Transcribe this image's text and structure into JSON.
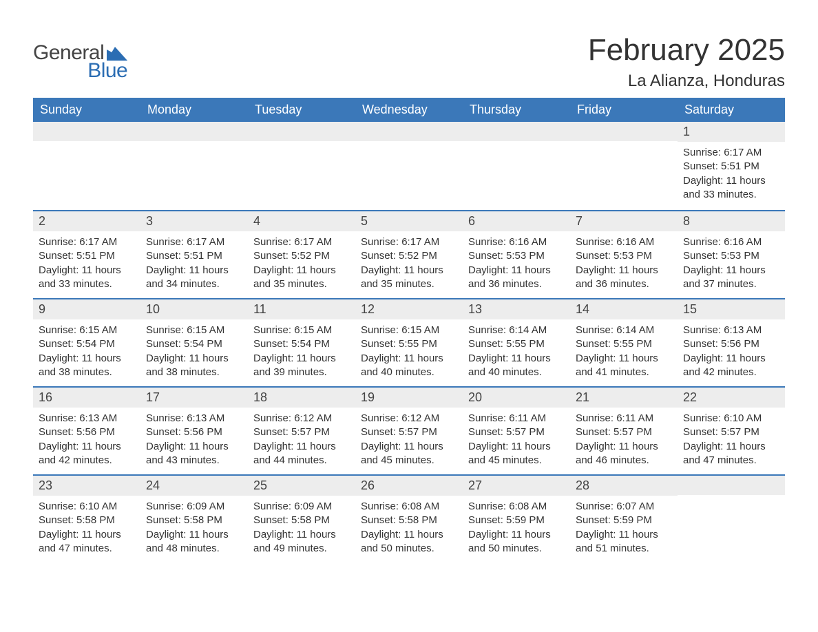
{
  "brand": {
    "part1": "General",
    "part2": "Blue",
    "icon_color": "#2b6db3",
    "text1_color": "#444444"
  },
  "title": "February 2025",
  "location": "La Alianza, Honduras",
  "colors": {
    "header_bg": "#3b78b9",
    "header_text": "#ffffff",
    "row_divider": "#3b78b9",
    "daynum_bg": "#ededed",
    "body_text": "#333333",
    "page_bg": "#ffffff"
  },
  "fonts": {
    "family": "Arial",
    "month_title_pt": 44,
    "location_pt": 24,
    "weekday_pt": 18,
    "daynum_pt": 18,
    "body_pt": 15
  },
  "labels": {
    "sunrise_prefix": "Sunrise: ",
    "sunset_prefix": "Sunset: ",
    "daylight_prefix": "Daylight: ",
    "and_minutes_suffix": " minutes."
  },
  "weekdays": [
    "Sunday",
    "Monday",
    "Tuesday",
    "Wednesday",
    "Thursday",
    "Friday",
    "Saturday"
  ],
  "weeks": [
    [
      null,
      null,
      null,
      null,
      null,
      null,
      {
        "n": 1,
        "sunrise": "6:17 AM",
        "sunset": "5:51 PM",
        "daylight_h": 11,
        "daylight_m": 33
      }
    ],
    [
      {
        "n": 2,
        "sunrise": "6:17 AM",
        "sunset": "5:51 PM",
        "daylight_h": 11,
        "daylight_m": 33
      },
      {
        "n": 3,
        "sunrise": "6:17 AM",
        "sunset": "5:51 PM",
        "daylight_h": 11,
        "daylight_m": 34
      },
      {
        "n": 4,
        "sunrise": "6:17 AM",
        "sunset": "5:52 PM",
        "daylight_h": 11,
        "daylight_m": 35
      },
      {
        "n": 5,
        "sunrise": "6:17 AM",
        "sunset": "5:52 PM",
        "daylight_h": 11,
        "daylight_m": 35
      },
      {
        "n": 6,
        "sunrise": "6:16 AM",
        "sunset": "5:53 PM",
        "daylight_h": 11,
        "daylight_m": 36
      },
      {
        "n": 7,
        "sunrise": "6:16 AM",
        "sunset": "5:53 PM",
        "daylight_h": 11,
        "daylight_m": 36
      },
      {
        "n": 8,
        "sunrise": "6:16 AM",
        "sunset": "5:53 PM",
        "daylight_h": 11,
        "daylight_m": 37
      }
    ],
    [
      {
        "n": 9,
        "sunrise": "6:15 AM",
        "sunset": "5:54 PM",
        "daylight_h": 11,
        "daylight_m": 38
      },
      {
        "n": 10,
        "sunrise": "6:15 AM",
        "sunset": "5:54 PM",
        "daylight_h": 11,
        "daylight_m": 38
      },
      {
        "n": 11,
        "sunrise": "6:15 AM",
        "sunset": "5:54 PM",
        "daylight_h": 11,
        "daylight_m": 39
      },
      {
        "n": 12,
        "sunrise": "6:15 AM",
        "sunset": "5:55 PM",
        "daylight_h": 11,
        "daylight_m": 40
      },
      {
        "n": 13,
        "sunrise": "6:14 AM",
        "sunset": "5:55 PM",
        "daylight_h": 11,
        "daylight_m": 40
      },
      {
        "n": 14,
        "sunrise": "6:14 AM",
        "sunset": "5:55 PM",
        "daylight_h": 11,
        "daylight_m": 41
      },
      {
        "n": 15,
        "sunrise": "6:13 AM",
        "sunset": "5:56 PM",
        "daylight_h": 11,
        "daylight_m": 42
      }
    ],
    [
      {
        "n": 16,
        "sunrise": "6:13 AM",
        "sunset": "5:56 PM",
        "daylight_h": 11,
        "daylight_m": 42
      },
      {
        "n": 17,
        "sunrise": "6:13 AM",
        "sunset": "5:56 PM",
        "daylight_h": 11,
        "daylight_m": 43
      },
      {
        "n": 18,
        "sunrise": "6:12 AM",
        "sunset": "5:57 PM",
        "daylight_h": 11,
        "daylight_m": 44
      },
      {
        "n": 19,
        "sunrise": "6:12 AM",
        "sunset": "5:57 PM",
        "daylight_h": 11,
        "daylight_m": 45
      },
      {
        "n": 20,
        "sunrise": "6:11 AM",
        "sunset": "5:57 PM",
        "daylight_h": 11,
        "daylight_m": 45
      },
      {
        "n": 21,
        "sunrise": "6:11 AM",
        "sunset": "5:57 PM",
        "daylight_h": 11,
        "daylight_m": 46
      },
      {
        "n": 22,
        "sunrise": "6:10 AM",
        "sunset": "5:57 PM",
        "daylight_h": 11,
        "daylight_m": 47
      }
    ],
    [
      {
        "n": 23,
        "sunrise": "6:10 AM",
        "sunset": "5:58 PM",
        "daylight_h": 11,
        "daylight_m": 47
      },
      {
        "n": 24,
        "sunrise": "6:09 AM",
        "sunset": "5:58 PM",
        "daylight_h": 11,
        "daylight_m": 48
      },
      {
        "n": 25,
        "sunrise": "6:09 AM",
        "sunset": "5:58 PM",
        "daylight_h": 11,
        "daylight_m": 49
      },
      {
        "n": 26,
        "sunrise": "6:08 AM",
        "sunset": "5:58 PM",
        "daylight_h": 11,
        "daylight_m": 50
      },
      {
        "n": 27,
        "sunrise": "6:08 AM",
        "sunset": "5:59 PM",
        "daylight_h": 11,
        "daylight_m": 50
      },
      {
        "n": 28,
        "sunrise": "6:07 AM",
        "sunset": "5:59 PM",
        "daylight_h": 11,
        "daylight_m": 51
      },
      null
    ]
  ]
}
